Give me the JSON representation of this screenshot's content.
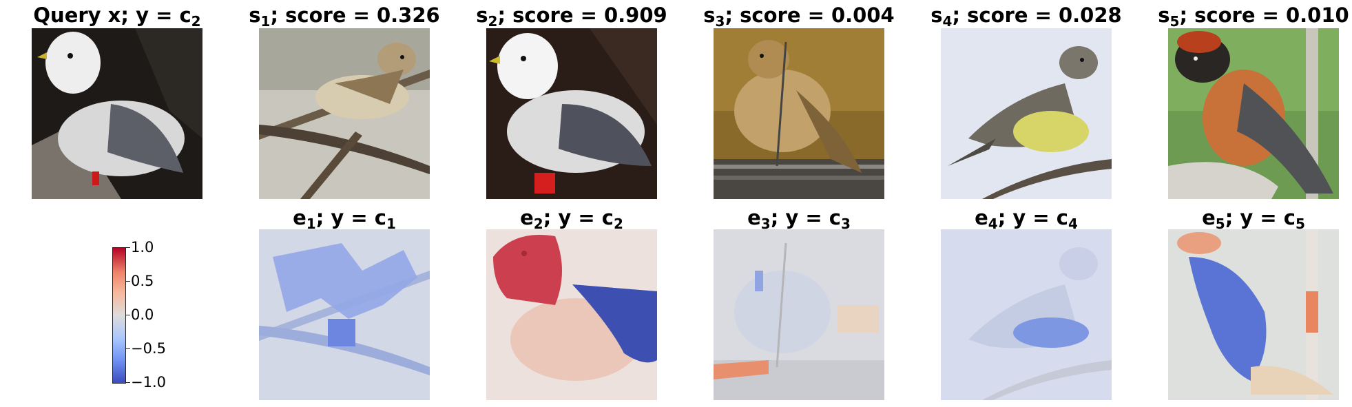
{
  "query": {
    "prefix": "Query x; y",
    "eq": " = c",
    "sub": "2"
  },
  "samples": [
    {
      "s_sub": "1",
      "score_text": "; score = 0.326"
    },
    {
      "s_sub": "2",
      "score_text": "; score = 0.909"
    },
    {
      "s_sub": "3",
      "score_text": "; score = 0.004"
    },
    {
      "s_sub": "4",
      "score_text": "; score = 0.028"
    },
    {
      "s_sub": "5",
      "score_text": "; score = 0.010"
    }
  ],
  "explanations": [
    {
      "e_sub": "1",
      "mid": "; y = c",
      "c_sub": "1"
    },
    {
      "e_sub": "2",
      "mid": "; y = c",
      "c_sub": "2"
    },
    {
      "e_sub": "3",
      "mid": "; y = c",
      "c_sub": "3"
    },
    {
      "e_sub": "4",
      "mid": "; y = c",
      "c_sub": "4"
    },
    {
      "e_sub": "5",
      "mid": "; y = c",
      "c_sub": "5"
    }
  ],
  "colorbar": {
    "ticks": [
      "1.0",
      "0.5",
      "0.0",
      "−0.5",
      "−1.0"
    ],
    "colormap": [
      "#3b4cc0",
      "#dddcdc",
      "#b40426"
    ]
  }
}
